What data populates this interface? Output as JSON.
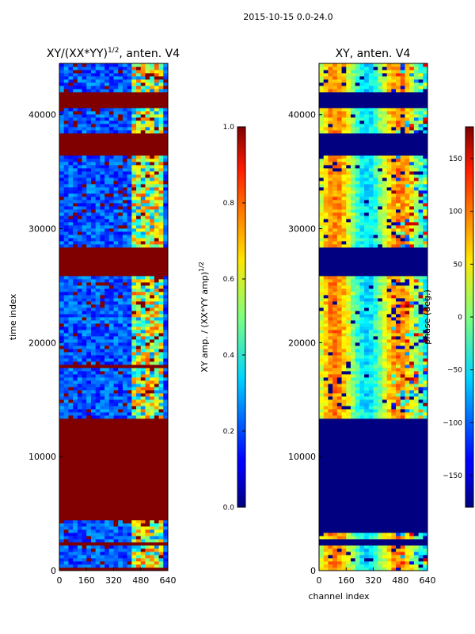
{
  "suptitle": "2015-10-15 0.0-24.0",
  "chart_data": [
    {
      "type": "heatmap",
      "title": "XY/(XX*YY)",
      "title_exp": "1/2",
      "title_suffix": ", anten. V4",
      "xlabel": "",
      "ylabel": "time index",
      "xlim": [
        0,
        640
      ],
      "ylim": [
        0,
        44500
      ],
      "xticks": [
        0,
        160,
        320,
        480,
        640
      ],
      "yticks": [
        0,
        10000,
        20000,
        30000,
        40000
      ],
      "colorbar": {
        "label": "XY amp. / (XX*YY amp)",
        "label_exp": "1/2",
        "range": [
          0.0,
          1.0
        ],
        "ticks": [
          "0.0",
          "0.2",
          "0.4",
          "0.6",
          "0.8",
          "1.0"
        ]
      },
      "flagged_time_ranges": [
        [
          2100,
          3400
        ],
        [
          4400,
          13400
        ],
        [
          38500,
          40000
        ],
        [
          40500,
          41800
        ]
      ],
      "solid_time_ranges": [
        [
          0,
          300
        ],
        [
          2100,
          2500
        ],
        [
          4500,
          13400
        ],
        [
          17800,
          18000
        ],
        [
          25800,
          28300
        ],
        [
          28300,
          28400
        ],
        [
          36500,
          38400
        ],
        [
          40500,
          42000
        ]
      ]
    },
    {
      "type": "heatmap",
      "title": "XY, anten. V4",
      "xlabel": "channel index",
      "ylabel": "",
      "xlim": [
        0,
        640
      ],
      "ylim": [
        0,
        44500
      ],
      "xticks": [
        0,
        160,
        320,
        480,
        640
      ],
      "yticks": [
        0,
        10000,
        20000,
        30000,
        40000
      ],
      "colorbar": {
        "label": "phase (deg.)",
        "range": [
          -180,
          180
        ],
        "ticks": [
          "−150",
          "−100",
          "−50",
          "0",
          "50",
          "100",
          "150"
        ]
      },
      "solid_time_ranges": [
        [
          2200,
          2700
        ],
        [
          3300,
          4400
        ],
        [
          4500,
          13400
        ],
        [
          25800,
          28300
        ],
        [
          36500,
          38400
        ],
        [
          40500,
          42000
        ]
      ]
    }
  ]
}
